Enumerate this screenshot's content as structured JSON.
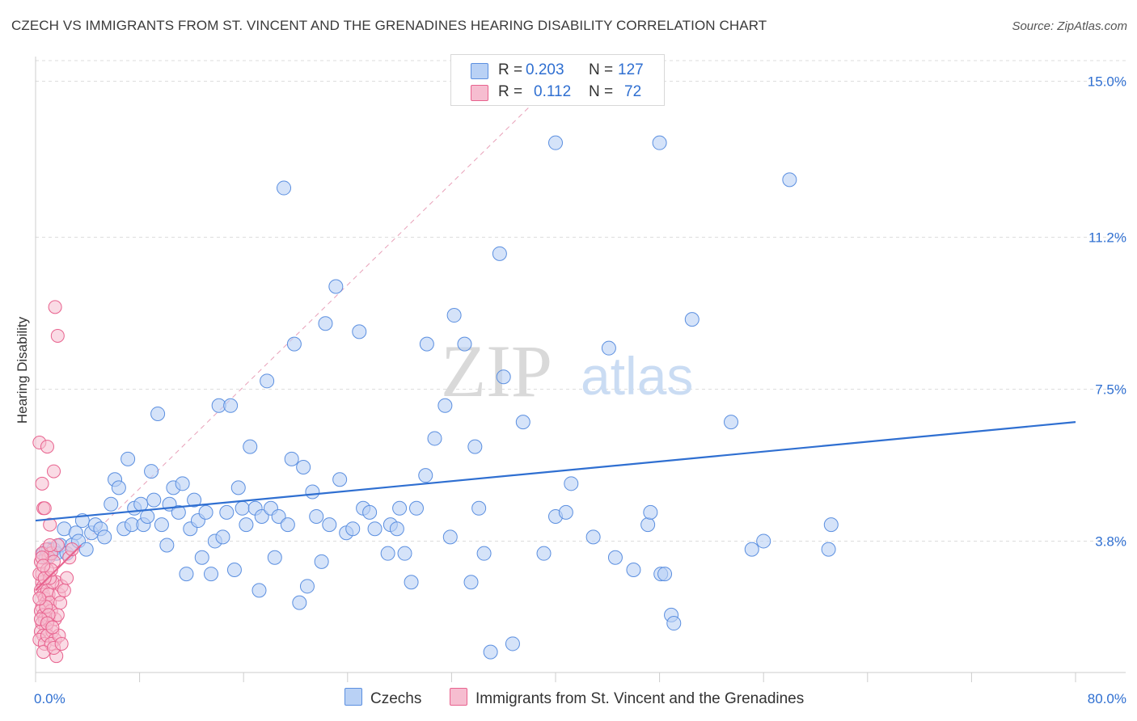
{
  "title": "CZECH VS IMMIGRANTS FROM ST. VINCENT AND THE GRENADINES HEARING DISABILITY CORRELATION CHART",
  "source": "Source: ZipAtlas.com",
  "watermark": {
    "zip": "ZIP",
    "atlas": "atlas"
  },
  "legend": {
    "czech": {
      "r_label": "R =",
      "r_value": "0.203",
      "n_label": "N =",
      "n_value": "127"
    },
    "svg_imm": {
      "r_label": "R =",
      "r_value": "0.112",
      "n_label": "N =",
      "n_value": "72"
    }
  },
  "bottom_legend": {
    "czech": "Czechs",
    "svg_imm": "Immigrants from St. Vincent and the Grenadines"
  },
  "colors": {
    "czech": "#5b8fe0",
    "czech_fill": "#b9d1f5",
    "svg_imm": "#e8628e",
    "svg_imm_fill": "#f6bdd0",
    "trend_czech": "#2f6fd1",
    "trend_pink": "#e8628e",
    "axis_text": "#2f6fd1"
  },
  "chart_data": {
    "type": "scatter",
    "xlabel": "",
    "ylabel": "Hearing Disability",
    "xlim": [
      0,
      80
    ],
    "ylim": [
      0.6,
      15.6
    ],
    "x_tick_labels": [
      "0.0%",
      "80.0%"
    ],
    "y_ticks": [
      3.8,
      7.5,
      11.2,
      15.0
    ],
    "y_tick_labels": [
      "3.8%",
      "7.5%",
      "11.2%",
      "15.0%"
    ],
    "grid": true,
    "legend_position": "top-center",
    "series": [
      {
        "name": "Czechs",
        "trend": {
          "x": [
            0,
            80
          ],
          "y": [
            4.3,
            6.7
          ]
        },
        "points": [
          [
            0.6,
            3.5
          ],
          [
            0.8,
            3.4
          ],
          [
            1.0,
            3.6
          ],
          [
            1.2,
            3.5
          ],
          [
            1.4,
            3.6
          ],
          [
            1.6,
            3.5
          ],
          [
            1.9,
            3.7
          ],
          [
            2.2,
            4.1
          ],
          [
            2.4,
            3.5
          ],
          [
            2.8,
            3.7
          ],
          [
            3.1,
            4.0
          ],
          [
            3.3,
            3.8
          ],
          [
            3.6,
            4.3
          ],
          [
            3.9,
            3.6
          ],
          [
            4.3,
            4.0
          ],
          [
            4.6,
            4.2
          ],
          [
            5.0,
            4.1
          ],
          [
            5.3,
            3.9
          ],
          [
            5.8,
            4.7
          ],
          [
            6.1,
            5.3
          ],
          [
            6.4,
            5.1
          ],
          [
            6.8,
            4.1
          ],
          [
            7.1,
            5.8
          ],
          [
            7.4,
            4.2
          ],
          [
            7.6,
            4.6
          ],
          [
            8.1,
            4.7
          ],
          [
            8.3,
            4.2
          ],
          [
            8.6,
            4.4
          ],
          [
            8.9,
            5.5
          ],
          [
            9.1,
            4.8
          ],
          [
            9.4,
            6.9
          ],
          [
            9.7,
            4.2
          ],
          [
            10.1,
            3.7
          ],
          [
            10.3,
            4.7
          ],
          [
            10.6,
            5.1
          ],
          [
            11.0,
            4.5
          ],
          [
            11.3,
            5.2
          ],
          [
            11.6,
            3.0
          ],
          [
            11.9,
            4.1
          ],
          [
            12.2,
            4.8
          ],
          [
            12.5,
            4.3
          ],
          [
            12.8,
            3.4
          ],
          [
            13.1,
            4.5
          ],
          [
            13.5,
            3.0
          ],
          [
            13.8,
            3.8
          ],
          [
            14.1,
            7.1
          ],
          [
            14.4,
            3.9
          ],
          [
            14.7,
            4.5
          ],
          [
            15.0,
            7.1
          ],
          [
            15.3,
            3.1
          ],
          [
            15.6,
            5.1
          ],
          [
            15.9,
            4.6
          ],
          [
            16.2,
            4.2
          ],
          [
            16.5,
            6.1
          ],
          [
            16.9,
            4.6
          ],
          [
            17.2,
            2.6
          ],
          [
            17.4,
            4.4
          ],
          [
            17.8,
            7.7
          ],
          [
            18.1,
            4.6
          ],
          [
            18.4,
            3.4
          ],
          [
            18.7,
            4.4
          ],
          [
            19.1,
            12.4
          ],
          [
            19.4,
            4.2
          ],
          [
            19.7,
            5.8
          ],
          [
            19.9,
            8.6
          ],
          [
            20.3,
            2.3
          ],
          [
            20.6,
            5.6
          ],
          [
            20.9,
            2.7
          ],
          [
            21.3,
            5.0
          ],
          [
            21.6,
            4.4
          ],
          [
            22.0,
            3.3
          ],
          [
            22.3,
            9.1
          ],
          [
            22.6,
            4.2
          ],
          [
            23.1,
            10.0
          ],
          [
            23.4,
            5.3
          ],
          [
            23.9,
            4.0
          ],
          [
            24.4,
            4.1
          ],
          [
            24.9,
            8.9
          ],
          [
            25.2,
            4.6
          ],
          [
            25.7,
            4.5
          ],
          [
            26.1,
            4.1
          ],
          [
            27.1,
            3.5
          ],
          [
            27.3,
            4.2
          ],
          [
            27.8,
            4.1
          ],
          [
            28.0,
            4.6
          ],
          [
            28.4,
            3.5
          ],
          [
            28.9,
            2.8
          ],
          [
            29.3,
            4.6
          ],
          [
            30.0,
            5.4
          ],
          [
            30.1,
            8.6
          ],
          [
            30.7,
            6.3
          ],
          [
            31.5,
            7.1
          ],
          [
            31.9,
            3.9
          ],
          [
            32.2,
            9.3
          ],
          [
            33.0,
            8.6
          ],
          [
            33.5,
            2.8
          ],
          [
            33.8,
            6.1
          ],
          [
            34.1,
            4.6
          ],
          [
            34.5,
            3.5
          ],
          [
            35.0,
            1.1
          ],
          [
            35.7,
            10.8
          ],
          [
            36.0,
            7.8
          ],
          [
            36.7,
            1.3
          ],
          [
            37.5,
            6.7
          ],
          [
            39.1,
            3.5
          ],
          [
            40.0,
            13.5
          ],
          [
            40.0,
            4.4
          ],
          [
            40.8,
            4.5
          ],
          [
            41.2,
            5.2
          ],
          [
            42.9,
            3.9
          ],
          [
            44.1,
            8.5
          ],
          [
            44.6,
            3.4
          ],
          [
            46.0,
            3.1
          ],
          [
            47.1,
            4.2
          ],
          [
            47.3,
            4.5
          ],
          [
            48.1,
            3.0
          ],
          [
            48.9,
            2.0
          ],
          [
            49.1,
            1.8
          ],
          [
            48.4,
            3.0
          ],
          [
            48.0,
            13.5
          ],
          [
            50.5,
            9.2
          ],
          [
            53.5,
            6.7
          ],
          [
            55.1,
            3.6
          ],
          [
            56.0,
            3.8
          ],
          [
            58.0,
            12.6
          ],
          [
            61.0,
            3.6
          ],
          [
            61.2,
            4.2
          ]
        ]
      },
      {
        "name": "Immigrants from St. Vincent and the Grenadines",
        "trend": {
          "x": [
            0,
            3.5
          ],
          "y": [
            2.6,
            3.7
          ]
        },
        "trend_extended": {
          "x": [
            0,
            40
          ],
          "y": [
            2.6,
            15.0
          ]
        },
        "points": [
          [
            0.3,
            6.2
          ],
          [
            0.5,
            5.2
          ],
          [
            0.6,
            4.6
          ],
          [
            0.7,
            4.6
          ],
          [
            0.9,
            6.1
          ],
          [
            1.4,
            5.5
          ],
          [
            1.1,
            4.2
          ],
          [
            1.5,
            9.5
          ],
          [
            1.7,
            8.8
          ],
          [
            0.4,
            3.3
          ],
          [
            0.5,
            3.0
          ],
          [
            0.5,
            2.8
          ],
          [
            0.6,
            2.7
          ],
          [
            0.4,
            2.6
          ],
          [
            0.6,
            2.5
          ],
          [
            0.7,
            2.4
          ],
          [
            0.8,
            2.3
          ],
          [
            0.5,
            2.2
          ],
          [
            0.4,
            2.1
          ],
          [
            0.6,
            2.0
          ],
          [
            0.7,
            1.9
          ],
          [
            0.5,
            1.8
          ],
          [
            0.8,
            1.7
          ],
          [
            0.4,
            1.6
          ],
          [
            0.6,
            1.5
          ],
          [
            0.3,
            1.4
          ],
          [
            0.7,
            1.3
          ],
          [
            0.9,
            2.6
          ],
          [
            1.0,
            2.5
          ],
          [
            1.1,
            2.3
          ],
          [
            1.2,
            2.1
          ],
          [
            1.0,
            1.9
          ],
          [
            1.3,
            1.6
          ],
          [
            0.9,
            1.5
          ],
          [
            1.5,
            1.4
          ],
          [
            1.2,
            1.3
          ],
          [
            0.8,
            3.6
          ],
          [
            1.0,
            3.4
          ],
          [
            1.2,
            3.5
          ],
          [
            1.4,
            3.3
          ],
          [
            1.7,
            3.7
          ],
          [
            1.6,
            2.8
          ],
          [
            1.8,
            2.5
          ],
          [
            1.9,
            2.3
          ],
          [
            2.0,
            2.7
          ],
          [
            2.2,
            2.6
          ],
          [
            2.4,
            2.9
          ],
          [
            2.6,
            3.4
          ],
          [
            2.8,
            3.6
          ],
          [
            1.5,
            1.9
          ],
          [
            1.7,
            2.0
          ],
          [
            1.3,
            2.8
          ],
          [
            0.5,
            3.5
          ],
          [
            0.3,
            3.0
          ],
          [
            0.9,
            3.1
          ],
          [
            1.1,
            2.9
          ],
          [
            0.6,
            1.1
          ],
          [
            1.6,
            1.0
          ],
          [
            1.4,
            1.2
          ],
          [
            0.8,
            2.2
          ],
          [
            1.0,
            2.0
          ],
          [
            0.4,
            1.9
          ],
          [
            0.7,
            2.9
          ],
          [
            0.5,
            3.4
          ],
          [
            1.2,
            3.1
          ],
          [
            1.8,
            1.5
          ],
          [
            2.0,
            1.3
          ],
          [
            0.3,
            2.4
          ],
          [
            0.9,
            1.8
          ],
          [
            1.3,
            1.7
          ],
          [
            0.6,
            3.2
          ],
          [
            1.1,
            3.7
          ]
        ]
      }
    ]
  }
}
